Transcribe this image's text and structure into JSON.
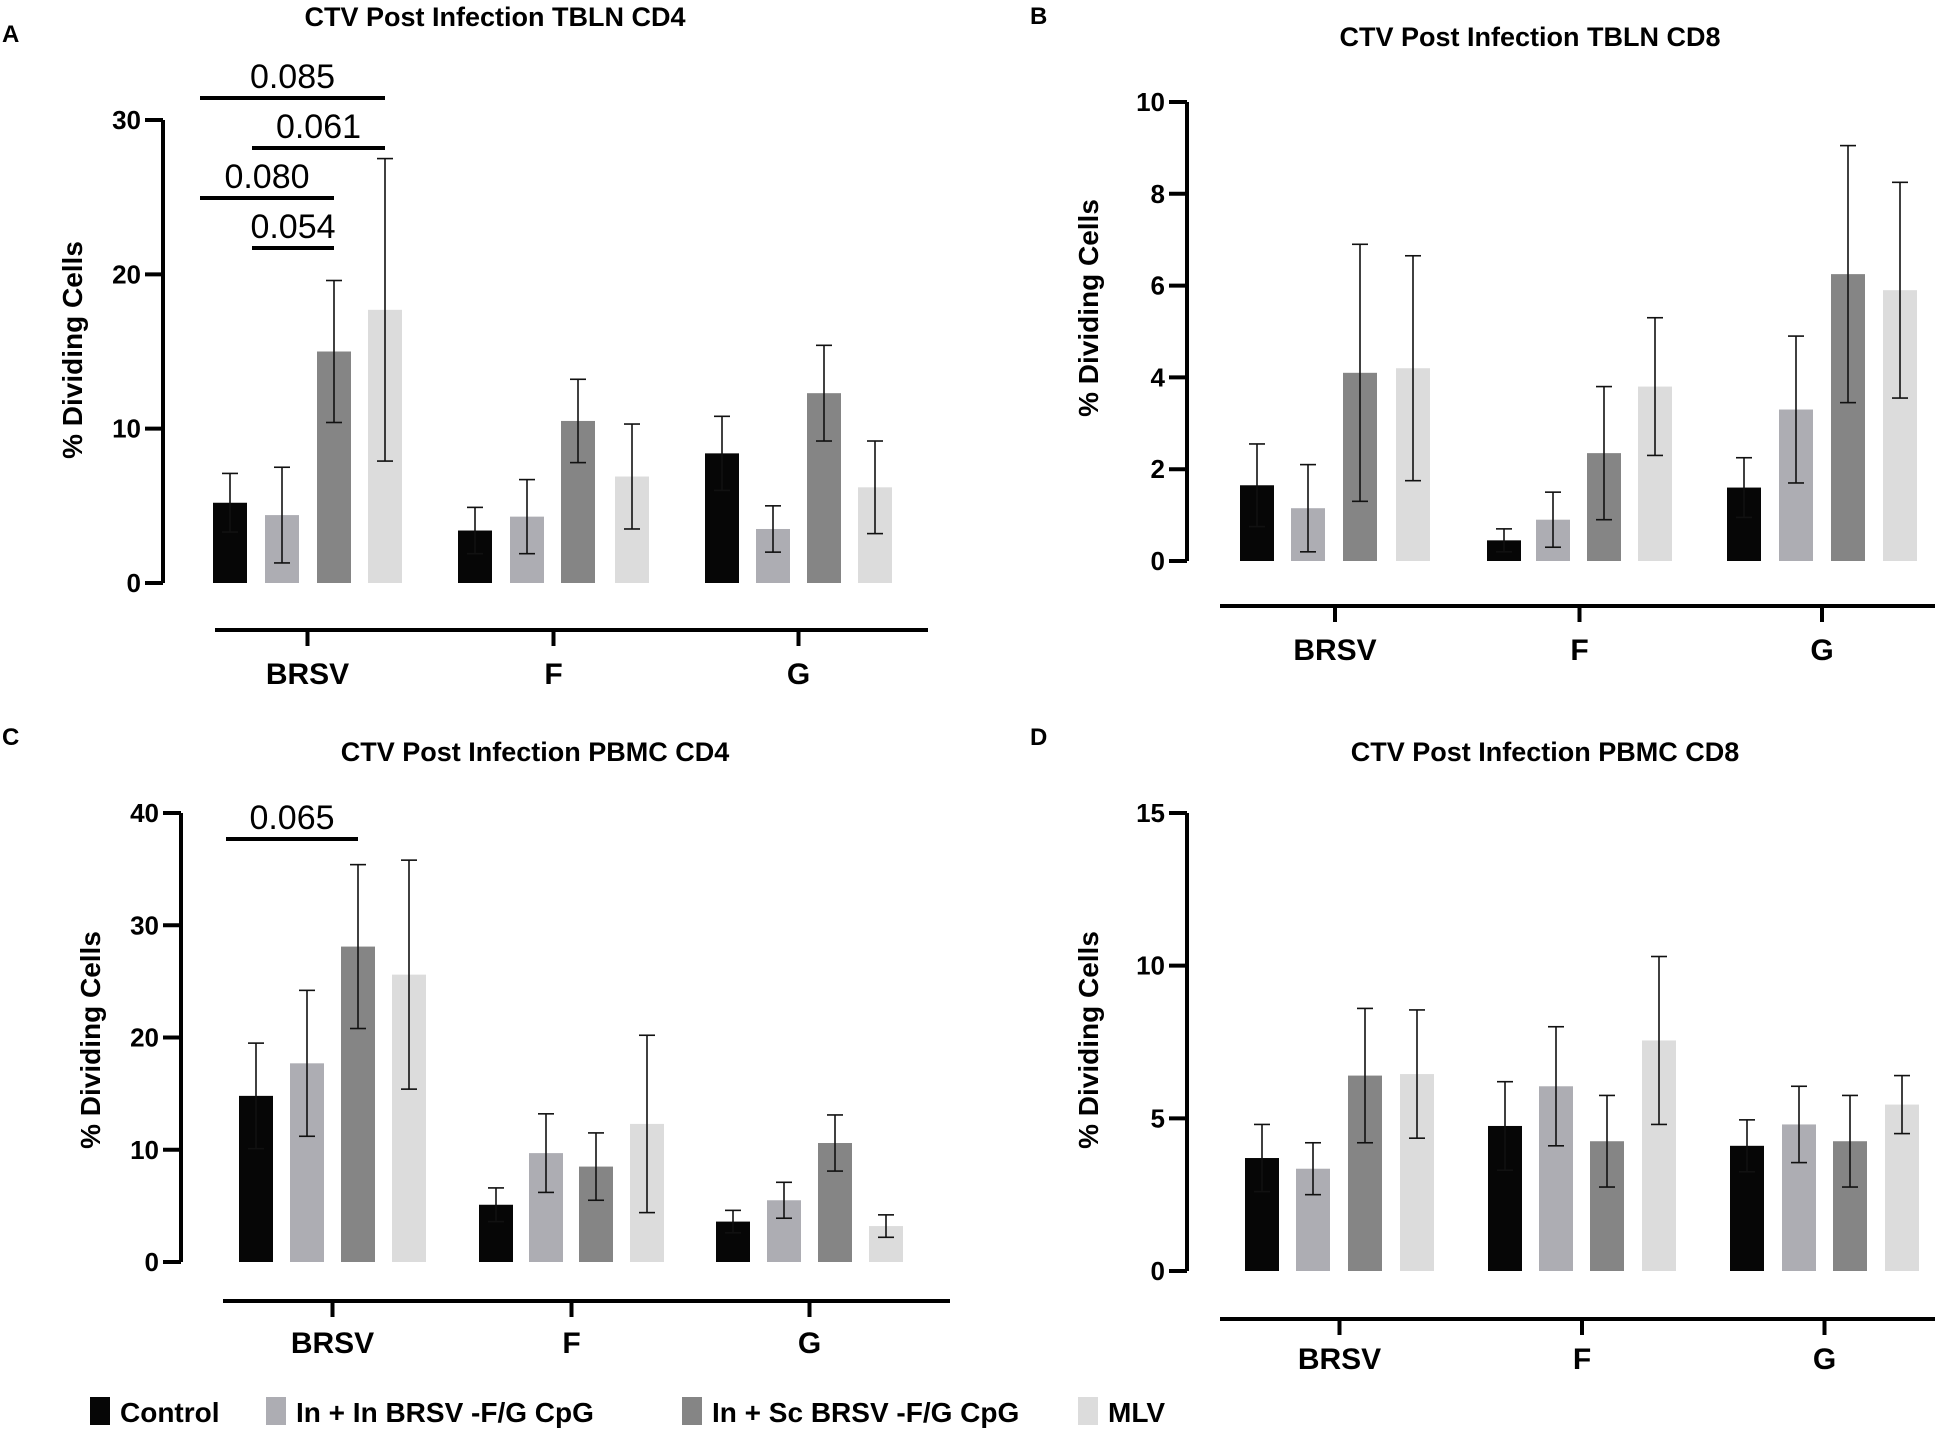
{
  "colors": {
    "Control": "#060606",
    "In + In BRSV -F/G CpG": "#adadb3",
    "In + Sc BRSV -F/G CpG": "#858585",
    "MLV": "#dcdcdc"
  },
  "legend": {
    "items": [
      {
        "label": "Control",
        "color": "#060606"
      },
      {
        "label": "In + In BRSV -F/G CpG",
        "color": "#adadb3"
      },
      {
        "label": "In + Sc BRSV -F/G CpG",
        "color": "#858585"
      },
      {
        "label": "MLV",
        "color": "#dcdcdc"
      }
    ]
  },
  "chart_data": [
    {
      "panel": "A",
      "type": "bar",
      "title": "CTV Post Infection TBLN CD4",
      "ylabel": "% Dividing Cells",
      "xlabel": "",
      "ylim": [
        0,
        30
      ],
      "yticks": [
        0,
        10,
        20,
        30
      ],
      "categories": [
        "BRSV",
        "F",
        "G"
      ],
      "series": [
        {
          "name": "Control",
          "values": [
            5.2,
            3.4,
            8.4
          ],
          "errors": [
            1.9,
            1.5,
            2.4
          ]
        },
        {
          "name": "In + In BRSV -F/G CpG",
          "values": [
            4.4,
            4.3,
            3.5
          ],
          "errors": [
            3.1,
            2.4,
            1.5
          ]
        },
        {
          "name": "In + Sc BRSV -F/G CpG",
          "values": [
            15.0,
            10.5,
            12.3
          ],
          "errors": [
            4.6,
            2.7,
            3.1
          ]
        },
        {
          "name": "MLV",
          "values": [
            17.7,
            6.9,
            6.2
          ],
          "errors": [
            9.8,
            3.4,
            3.0
          ]
        }
      ],
      "annotations": [
        {
          "text": "0.085",
          "from": "Control",
          "to": "MLV",
          "category": "BRSV",
          "level": 1
        },
        {
          "text": "0.061",
          "from": "In + In BRSV -F/G CpG",
          "to": "MLV",
          "category": "BRSV",
          "level": 2
        },
        {
          "text": "0.080",
          "from": "Control",
          "to": "In + Sc BRSV -F/G CpG",
          "category": "BRSV",
          "level": 3
        },
        {
          "text": "0.054",
          "from": "In + In BRSV -F/G CpG",
          "to": "In + Sc BRSV -F/G CpG",
          "category": "BRSV",
          "level": 4
        }
      ]
    },
    {
      "panel": "B",
      "type": "bar",
      "title": "CTV Post Infection TBLN CD8",
      "ylabel": "% Dividing Cells",
      "xlabel": "",
      "ylim": [
        0,
        10
      ],
      "yticks": [
        0,
        2,
        4,
        6,
        8,
        10
      ],
      "categories": [
        "BRSV",
        "F",
        "G"
      ],
      "series": [
        {
          "name": "Control",
          "values": [
            1.65,
            0.45,
            1.6
          ],
          "errors": [
            0.9,
            0.25,
            0.65
          ]
        },
        {
          "name": "In + In BRSV -F/G CpG",
          "values": [
            1.15,
            0.9,
            3.3
          ],
          "errors": [
            0.95,
            0.6,
            1.6
          ]
        },
        {
          "name": "In + Sc BRSV -F/G CpG",
          "values": [
            4.1,
            2.35,
            6.25
          ],
          "errors": [
            2.8,
            1.45,
            2.8
          ]
        },
        {
          "name": "MLV",
          "values": [
            4.2,
            3.8,
            5.9
          ],
          "errors": [
            2.45,
            1.5,
            2.35
          ]
        }
      ],
      "annotations": []
    },
    {
      "panel": "C",
      "type": "bar",
      "title": "CTV Post Infection PBMC CD4",
      "ylabel": "% Dividing Cells",
      "xlabel": "",
      "ylim": [
        0,
        40
      ],
      "yticks": [
        0,
        10,
        20,
        30,
        40
      ],
      "categories": [
        "BRSV",
        "F",
        "G"
      ],
      "series": [
        {
          "name": "Control",
          "values": [
            14.8,
            5.1,
            3.6
          ],
          "errors": [
            4.7,
            1.5,
            1.0
          ]
        },
        {
          "name": "In + In BRSV -F/G CpG",
          "values": [
            17.7,
            9.7,
            5.5
          ],
          "errors": [
            6.5,
            3.5,
            1.6
          ]
        },
        {
          "name": "In + Sc BRSV -F/G CpG",
          "values": [
            28.1,
            8.5,
            10.6
          ],
          "errors": [
            7.3,
            3.0,
            2.5
          ]
        },
        {
          "name": "MLV",
          "values": [
            25.6,
            12.3,
            3.2
          ],
          "errors": [
            10.2,
            7.9,
            1.0
          ]
        }
      ],
      "annotations": [
        {
          "text": "0.065",
          "from": "Control",
          "to": "In + Sc BRSV -F/G CpG",
          "category": "BRSV",
          "level": 1
        }
      ]
    },
    {
      "panel": "D",
      "type": "bar",
      "title": "CTV Post Infection PBMC CD8",
      "ylabel": "% Dividing Cells",
      "xlabel": "",
      "ylim": [
        0,
        15
      ],
      "yticks": [
        0,
        5,
        10,
        15
      ],
      "categories": [
        "BRSV",
        "F",
        "G"
      ],
      "series": [
        {
          "name": "Control",
          "values": [
            3.7,
            4.75,
            4.1
          ],
          "errors": [
            1.1,
            1.45,
            0.85
          ]
        },
        {
          "name": "In + In BRSV -F/G CpG",
          "values": [
            3.35,
            6.05,
            4.8
          ],
          "errors": [
            0.85,
            1.95,
            1.25
          ]
        },
        {
          "name": "In + Sc BRSV -F/G CpG",
          "values": [
            6.4,
            4.25,
            4.25
          ],
          "errors": [
            2.2,
            1.5,
            1.5
          ]
        },
        {
          "name": "MLV",
          "values": [
            6.45,
            7.55,
            5.45
          ],
          "errors": [
            2.1,
            2.75,
            0.95
          ]
        }
      ],
      "annotations": []
    }
  ]
}
